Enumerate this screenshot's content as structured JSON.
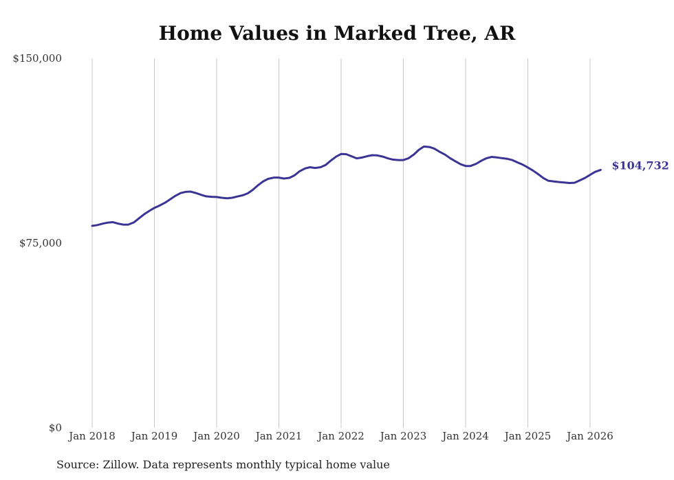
{
  "chart_data": {
    "type": "line",
    "title": "Home Values in Marked Tree, AR",
    "source_note": "Source: Zillow. Data represents monthly typical home value",
    "xlabel": "",
    "ylabel": "",
    "ylim": [
      0,
      150000
    ],
    "y_ticks": [
      {
        "value": 0,
        "label": "$0"
      },
      {
        "value": 75000,
        "label": "$75,000"
      },
      {
        "value": 150000,
        "label": "$150,000"
      }
    ],
    "x_ticks": [
      {
        "value": 2018.0,
        "label": "Jan 2018"
      },
      {
        "value": 2019.0,
        "label": "Jan 2019"
      },
      {
        "value": 2020.0,
        "label": "Jan 2020"
      },
      {
        "value": 2021.0,
        "label": "Jan 2021"
      },
      {
        "value": 2022.0,
        "label": "Jan 2022"
      },
      {
        "value": 2023.0,
        "label": "Jan 2023"
      },
      {
        "value": 2024.0,
        "label": "Jan 2024"
      },
      {
        "value": 2025.0,
        "label": "Jan 2025"
      },
      {
        "value": 2026.0,
        "label": "Jan 2026"
      }
    ],
    "xlim": [
      2018.0,
      2026.2
    ],
    "grid": "vertical",
    "line_color": "#3b3494",
    "series": [
      {
        "x": [
          2018.0,
          2018.08,
          2018.17,
          2018.25,
          2018.33,
          2018.42,
          2018.5,
          2018.58,
          2018.67,
          2018.75,
          2018.83,
          2018.92,
          2019.0,
          2019.08,
          2019.17,
          2019.25,
          2019.33,
          2019.42,
          2019.5,
          2019.58,
          2019.67,
          2019.75,
          2019.83,
          2019.92,
          2020.0,
          2020.08,
          2020.17,
          2020.25,
          2020.33,
          2020.42,
          2020.5,
          2020.58,
          2020.67,
          2020.75,
          2020.83,
          2020.92,
          2021.0,
          2021.08,
          2021.17,
          2021.25,
          2021.33,
          2021.42,
          2021.5,
          2021.58,
          2021.67,
          2021.75,
          2021.83,
          2021.92,
          2022.0,
          2022.08,
          2022.17,
          2022.25,
          2022.33,
          2022.42,
          2022.5,
          2022.58,
          2022.67,
          2022.75,
          2022.83,
          2022.92,
          2023.0,
          2023.08,
          2023.17,
          2023.25,
          2023.33,
          2023.42,
          2023.5,
          2023.58,
          2023.67,
          2023.75,
          2023.83,
          2023.92,
          2024.0,
          2024.08,
          2024.17,
          2024.25,
          2024.33,
          2024.42,
          2024.5,
          2024.58,
          2024.67,
          2024.75,
          2024.83,
          2024.92,
          2025.0,
          2025.08,
          2025.17,
          2025.25,
          2025.33,
          2025.42,
          2025.5,
          2025.58,
          2025.67,
          2025.75,
          2025.83,
          2025.92,
          2026.0,
          2026.08,
          2026.17
        ],
        "values": [
          82000,
          82300,
          82900,
          83300,
          83500,
          82900,
          82500,
          82500,
          83400,
          85000,
          86600,
          88100,
          89300,
          90200,
          91400,
          92700,
          94100,
          95300,
          95800,
          95900,
          95300,
          94600,
          94000,
          93800,
          93700,
          93400,
          93200,
          93400,
          93900,
          94400,
          95200,
          96600,
          98600,
          100100,
          101100,
          101600,
          101600,
          101200,
          101500,
          102500,
          104100,
          105300,
          105800,
          105500,
          105800,
          106700,
          108400,
          110100,
          111200,
          111100,
          110200,
          109400,
          109700,
          110300,
          110700,
          110600,
          110100,
          109400,
          108900,
          108700,
          108700,
          109400,
          111000,
          112900,
          114200,
          114000,
          113300,
          112100,
          110900,
          109500,
          108300,
          107000,
          106300,
          106300,
          107200,
          108400,
          109400,
          110000,
          109800,
          109500,
          109200,
          108700,
          107800,
          106800,
          105700,
          104500,
          102900,
          101400,
          100300,
          100000,
          99800,
          99600,
          99400,
          99500,
          100400,
          101500,
          102700,
          103900,
          104732
        ]
      }
    ],
    "end_label": "$104,732"
  }
}
